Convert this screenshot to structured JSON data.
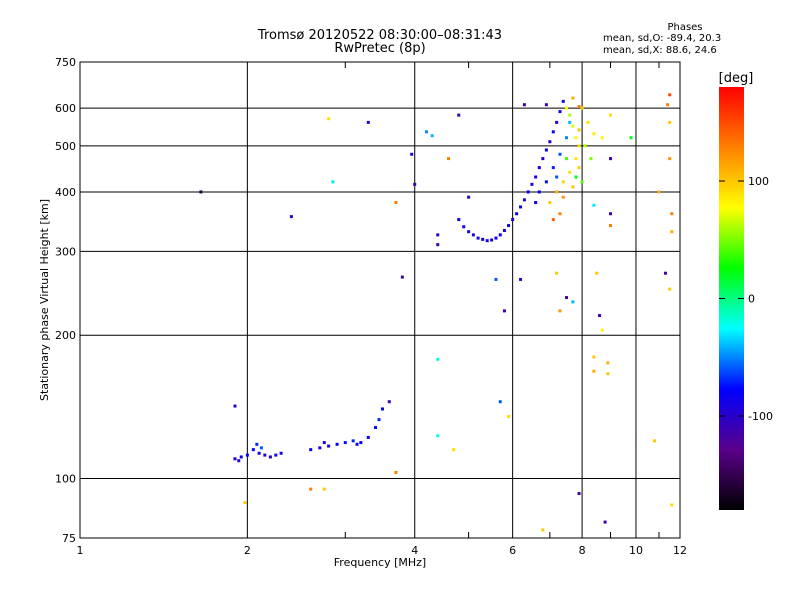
{
  "title": "Tromsø 20120522 08:30:00–08:31:43",
  "subtitle": "RwPretec (8p)",
  "phases": {
    "heading": "Phases",
    "line1": "mean, sd,O: -89.4, 20.3",
    "line2": "mean, sd,X:  88.6, 24.6"
  },
  "chart_data": {
    "type": "scatter",
    "title": "Tromsø 20120522 08:30:00–08:31:43",
    "subtitle": "RwPretec (8p)",
    "xlabel": "Frequency [MHz]",
    "ylabel": "Stationary phase Virtual Height [km]",
    "xscale": "log",
    "yscale": "log",
    "xlim": [
      1,
      12
    ],
    "ylim": [
      75,
      750
    ],
    "xticks": [
      1,
      2,
      4,
      6,
      8,
      10,
      12
    ],
    "yticks": [
      75,
      100,
      200,
      300,
      400,
      500,
      600,
      750
    ],
    "grid": true,
    "colorbar": {
      "label": "[deg]",
      "range": [
        -180,
        180
      ],
      "ticks": [
        -100,
        0,
        100
      ],
      "colors": [
        "#000000",
        "#5a008a",
        "#0000ff",
        "#00ffff",
        "#00ff00",
        "#ffff00",
        "#ff8000",
        "#ff0000"
      ]
    },
    "series": [
      {
        "name": "",
        "points": [
          {
            "x": 1.9,
            "y": 110,
            "c": -90
          },
          {
            "x": 1.95,
            "y": 111,
            "c": -85
          },
          {
            "x": 2.0,
            "y": 112,
            "c": -80
          },
          {
            "x": 2.05,
            "y": 115,
            "c": -75
          },
          {
            "x": 2.1,
            "y": 113,
            "c": -85
          },
          {
            "x": 2.15,
            "y": 112,
            "c": -90
          },
          {
            "x": 2.2,
            "y": 111,
            "c": -95
          },
          {
            "x": 2.25,
            "y": 112,
            "c": -85
          },
          {
            "x": 2.08,
            "y": 118,
            "c": -70
          },
          {
            "x": 2.12,
            "y": 116,
            "c": -60
          },
          {
            "x": 1.93,
            "y": 109,
            "c": -100
          },
          {
            "x": 2.3,
            "y": 113,
            "c": -90
          },
          {
            "x": 2.6,
            "y": 115,
            "c": -80
          },
          {
            "x": 2.7,
            "y": 116,
            "c": -85
          },
          {
            "x": 2.8,
            "y": 117,
            "c": -90
          },
          {
            "x": 2.9,
            "y": 118,
            "c": -80
          },
          {
            "x": 3.0,
            "y": 119,
            "c": -75
          },
          {
            "x": 3.1,
            "y": 120,
            "c": -70
          },
          {
            "x": 3.2,
            "y": 119,
            "c": -80
          },
          {
            "x": 3.3,
            "y": 122,
            "c": -85
          },
          {
            "x": 3.4,
            "y": 128,
            "c": -75
          },
          {
            "x": 3.45,
            "y": 133,
            "c": -70
          },
          {
            "x": 3.5,
            "y": 140,
            "c": -80
          },
          {
            "x": 2.75,
            "y": 119,
            "c": -90
          },
          {
            "x": 3.15,
            "y": 118,
            "c": -85
          },
          {
            "x": 1.9,
            "y": 142,
            "c": -100
          },
          {
            "x": 4.8,
            "y": 350,
            "c": -80
          },
          {
            "x": 4.9,
            "y": 338,
            "c": -85
          },
          {
            "x": 5.0,
            "y": 330,
            "c": -90
          },
          {
            "x": 5.1,
            "y": 325,
            "c": -95
          },
          {
            "x": 5.2,
            "y": 320,
            "c": -90
          },
          {
            "x": 5.3,
            "y": 318,
            "c": -85
          },
          {
            "x": 5.4,
            "y": 316,
            "c": -90
          },
          {
            "x": 5.5,
            "y": 317,
            "c": -95
          },
          {
            "x": 5.6,
            "y": 320,
            "c": -85
          },
          {
            "x": 5.7,
            "y": 325,
            "c": -80
          },
          {
            "x": 5.8,
            "y": 332,
            "c": -90
          },
          {
            "x": 5.9,
            "y": 340,
            "c": -85
          },
          {
            "x": 6.0,
            "y": 350,
            "c": -90
          },
          {
            "x": 6.1,
            "y": 360,
            "c": -80
          },
          {
            "x": 6.2,
            "y": 372,
            "c": -85
          },
          {
            "x": 6.3,
            "y": 385,
            "c": -90
          },
          {
            "x": 6.4,
            "y": 400,
            "c": -85
          },
          {
            "x": 6.5,
            "y": 415,
            "c": -95
          },
          {
            "x": 6.6,
            "y": 430,
            "c": -90
          },
          {
            "x": 6.7,
            "y": 450,
            "c": -85
          },
          {
            "x": 6.8,
            "y": 470,
            "c": -90
          },
          {
            "x": 6.9,
            "y": 490,
            "c": -80
          },
          {
            "x": 7.0,
            "y": 510,
            "c": -90
          },
          {
            "x": 7.1,
            "y": 535,
            "c": -85
          },
          {
            "x": 7.2,
            "y": 560,
            "c": -90
          },
          {
            "x": 7.3,
            "y": 590,
            "c": -85
          },
          {
            "x": 7.4,
            "y": 620,
            "c": -90
          },
          {
            "x": 6.7,
            "y": 400,
            "c": -80
          },
          {
            "x": 6.9,
            "y": 420,
            "c": -75
          },
          {
            "x": 7.1,
            "y": 450,
            "c": -70
          },
          {
            "x": 7.3,
            "y": 480,
            "c": -60
          },
          {
            "x": 7.5,
            "y": 520,
            "c": -50
          },
          {
            "x": 7.6,
            "y": 560,
            "c": -40
          },
          {
            "x": 6.6,
            "y": 380,
            "c": -85
          },
          {
            "x": 7.2,
            "y": 430,
            "c": -60
          },
          {
            "x": 7.0,
            "y": 380,
            "c": 100
          },
          {
            "x": 7.2,
            "y": 400,
            "c": 110
          },
          {
            "x": 7.4,
            "y": 420,
            "c": 95
          },
          {
            "x": 7.6,
            "y": 440,
            "c": 90
          },
          {
            "x": 7.8,
            "y": 470,
            "c": 85
          },
          {
            "x": 7.9,
            "y": 500,
            "c": 90
          },
          {
            "x": 7.8,
            "y": 520,
            "c": 80
          },
          {
            "x": 7.7,
            "y": 550,
            "c": 70
          },
          {
            "x": 7.6,
            "y": 580,
            "c": 60
          },
          {
            "x": 7.5,
            "y": 600,
            "c": 75
          },
          {
            "x": 7.9,
            "y": 540,
            "c": 100
          },
          {
            "x": 8.1,
            "y": 500,
            "c": 60
          },
          {
            "x": 8.3,
            "y": 470,
            "c": 50
          },
          {
            "x": 7.3,
            "y": 360,
            "c": 130
          },
          {
            "x": 7.1,
            "y": 350,
            "c": 140
          },
          {
            "x": 7.4,
            "y": 390,
            "c": 120
          },
          {
            "x": 7.7,
            "y": 410,
            "c": 100
          },
          {
            "x": 7.9,
            "y": 450,
            "c": 95
          },
          {
            "x": 8.2,
            "y": 560,
            "c": 90
          },
          {
            "x": 8.4,
            "y": 530,
            "c": 85
          },
          {
            "x": 8.7,
            "y": 520,
            "c": 80
          },
          {
            "x": 8.0,
            "y": 600,
            "c": 95
          },
          {
            "x": 7.7,
            "y": 630,
            "c": 110
          },
          {
            "x": 7.5,
            "y": 470,
            "c": 40
          },
          {
            "x": 7.8,
            "y": 430,
            "c": 20
          },
          {
            "x": 8.0,
            "y": 420,
            "c": 45
          },
          {
            "x": 1.65,
            "y": 400,
            "c": -160
          },
          {
            "x": 2.4,
            "y": 355,
            "c": -100
          },
          {
            "x": 2.8,
            "y": 570,
            "c": 90
          },
          {
            "x": 2.85,
            "y": 420,
            "c": -30
          },
          {
            "x": 3.3,
            "y": 560,
            "c": -100
          },
          {
            "x": 3.7,
            "y": 380,
            "c": 130
          },
          {
            "x": 3.8,
            "y": 265,
            "c": -110
          },
          {
            "x": 3.95,
            "y": 480,
            "c": -100
          },
          {
            "x": 4.0,
            "y": 415,
            "c": -110
          },
          {
            "x": 4.2,
            "y": 535,
            "c": -50
          },
          {
            "x": 4.4,
            "y": 310,
            "c": -110
          },
          {
            "x": 4.4,
            "y": 325,
            "c": -100
          },
          {
            "x": 4.3,
            "y": 525,
            "c": -40
          },
          {
            "x": 4.6,
            "y": 470,
            "c": 130
          },
          {
            "x": 4.8,
            "y": 580,
            "c": -110
          },
          {
            "x": 5.0,
            "y": 390,
            "c": -100
          },
          {
            "x": 5.6,
            "y": 262,
            "c": -60
          },
          {
            "x": 5.8,
            "y": 225,
            "c": -110
          },
          {
            "x": 6.2,
            "y": 262,
            "c": -100
          },
          {
            "x": 6.3,
            "y": 610,
            "c": -110
          },
          {
            "x": 6.9,
            "y": 610,
            "c": -110
          },
          {
            "x": 7.2,
            "y": 270,
            "c": 100
          },
          {
            "x": 7.3,
            "y": 225,
            "c": 120
          },
          {
            "x": 7.5,
            "y": 240,
            "c": -120
          },
          {
            "x": 7.7,
            "y": 235,
            "c": -40
          },
          {
            "x": 7.9,
            "y": 605,
            "c": 130
          },
          {
            "x": 8.4,
            "y": 375,
            "c": -30
          },
          {
            "x": 8.6,
            "y": 220,
            "c": -110
          },
          {
            "x": 8.5,
            "y": 270,
            "c": 100
          },
          {
            "x": 8.7,
            "y": 205,
            "c": 80
          },
          {
            "x": 9.0,
            "y": 580,
            "c": 90
          },
          {
            "x": 9.0,
            "y": 470,
            "c": -110
          },
          {
            "x": 9.0,
            "y": 360,
            "c": -110
          },
          {
            "x": 9.0,
            "y": 340,
            "c": 130
          },
          {
            "x": 9.8,
            "y": 520,
            "c": 20
          },
          {
            "x": 10.8,
            "y": 120,
            "c": 100
          },
          {
            "x": 11.0,
            "y": 400,
            "c": 110
          },
          {
            "x": 11.3,
            "y": 270,
            "c": -120
          },
          {
            "x": 11.4,
            "y": 610,
            "c": 130
          },
          {
            "x": 11.5,
            "y": 560,
            "c": 100
          },
          {
            "x": 11.5,
            "y": 470,
            "c": 120
          },
          {
            "x": 11.6,
            "y": 360,
            "c": 130
          },
          {
            "x": 11.5,
            "y": 250,
            "c": 100
          },
          {
            "x": 11.6,
            "y": 330,
            "c": 110
          },
          {
            "x": 11.5,
            "y": 640,
            "c": 150
          },
          {
            "x": 11.6,
            "y": 88,
            "c": 90
          },
          {
            "x": 4.4,
            "y": 178,
            "c": -20
          },
          {
            "x": 4.4,
            "y": 123,
            "c": -20
          },
          {
            "x": 4.7,
            "y": 115,
            "c": 90
          },
          {
            "x": 5.7,
            "y": 145,
            "c": -60
          },
          {
            "x": 5.9,
            "y": 135,
            "c": 90
          },
          {
            "x": 3.6,
            "y": 145,
            "c": -110
          },
          {
            "x": 3.7,
            "y": 103,
            "c": 130
          },
          {
            "x": 2.6,
            "y": 95,
            "c": 130
          },
          {
            "x": 2.75,
            "y": 95,
            "c": 100
          },
          {
            "x": 1.98,
            "y": 89,
            "c": 100
          },
          {
            "x": 6.8,
            "y": 78,
            "c": 100
          },
          {
            "x": 7.9,
            "y": 93,
            "c": -110
          },
          {
            "x": 8.8,
            "y": 81,
            "c": -110
          },
          {
            "x": 8.4,
            "y": 180,
            "c": 100
          },
          {
            "x": 8.4,
            "y": 168,
            "c": 110
          },
          {
            "x": 8.9,
            "y": 175,
            "c": 110
          },
          {
            "x": 8.9,
            "y": 166,
            "c": 100
          }
        ]
      }
    ]
  }
}
